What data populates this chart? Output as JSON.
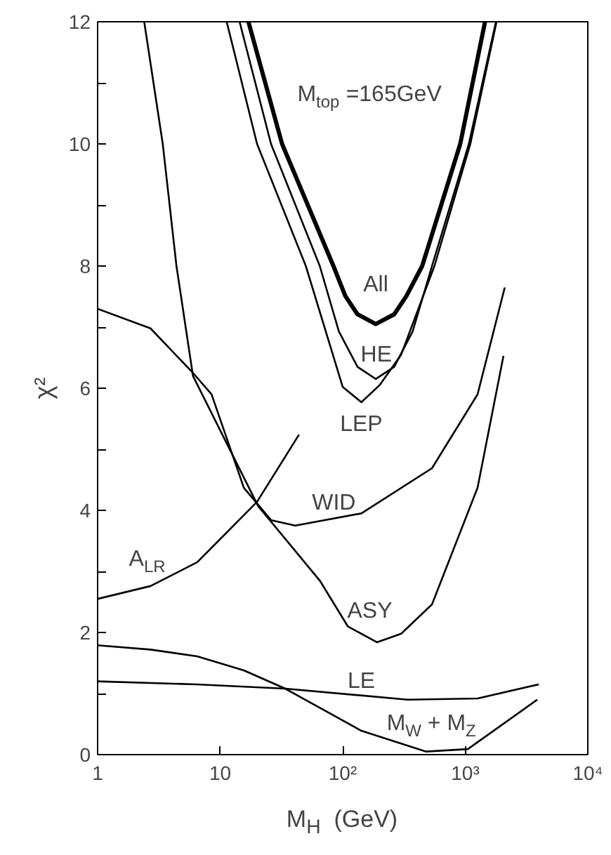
{
  "chart_data": {
    "type": "line",
    "xlabel": "M$_{H}$  (GeV)",
    "ylabel": "χ²",
    "log": "x",
    "grid": false,
    "marker": "none",
    "line_style": "solid",
    "xlim": [
      1,
      10000
    ],
    "ylim": [
      0,
      12
    ],
    "xticks": [
      1,
      10,
      {
        "value": 100,
        "label": "10²"
      },
      {
        "value": 1000,
        "label": "10³"
      },
      {
        "value": 10000,
        "label": "10⁴"
      }
    ],
    "yticks": [
      0,
      {
        "value": 1,
        "label": null
      },
      2,
      {
        "value": 3,
        "label": null
      },
      4,
      {
        "value": 5,
        "label": null
      },
      6,
      {
        "value": 7,
        "label": null
      },
      8,
      {
        "value": 9,
        "label": null
      },
      10,
      {
        "value": 11,
        "label": null
      },
      12
    ],
    "series": [
      {
        "name": "All",
        "color": "#000000",
        "x": [
          17,
          32,
          84,
          105,
          132,
          186,
          263,
          331,
          445,
          910,
          1450
        ],
        "values": [
          12,
          10,
          8,
          7.51,
          7.21,
          7.05,
          7.21,
          7.51,
          8,
          10,
          12
        ]
      },
      {
        "name": "HE",
        "color": "#000000",
        "x": [
          14.4,
          26,
          65,
          93,
          132,
          186,
          263,
          372,
          535,
          1070,
          1780
        ],
        "values": [
          12,
          10,
          8,
          6.93,
          6.35,
          6.15,
          6.35,
          6.93,
          8,
          10,
          12
        ]
      },
      {
        "name": "LEP",
        "color": "#000000",
        "x": [
          11.3,
          20,
          50,
          100,
          142,
          200,
          300,
          560,
          1100,
          1800
        ],
        "values": [
          12,
          10,
          8,
          6.02,
          5.77,
          6.05,
          6.55,
          8,
          10,
          12
        ]
      },
      {
        "name": "WID",
        "color": "#000000",
        "x": [
          1,
          2.7,
          6,
          8.5,
          15.6,
          26,
          41,
          142,
          535,
          1260,
          2100
        ],
        "values": [
          7.3,
          6.98,
          6.25,
          5.9,
          4.37,
          3.84,
          3.75,
          3.95,
          4.69,
          5.9,
          7.65
        ]
      },
      {
        "name": "ASY",
        "color": "#000000",
        "x": [
          2.4,
          3.4,
          4.4,
          6.0,
          20.4,
          65,
          110,
          190,
          300,
          535,
          1260,
          2050
        ],
        "values": [
          12,
          10,
          8,
          6.2,
          4.07,
          2.85,
          2.1,
          1.84,
          1.98,
          2.46,
          4.37,
          6.53
        ]
      },
      {
        "name": "A$_{LR}$",
        "color": "#000000",
        "x": [
          1,
          2.7,
          6.5,
          20,
          44
        ],
        "values": [
          2.55,
          2.76,
          3.15,
          4.14,
          5.24
        ]
      },
      {
        "name": "LE",
        "color": "#000000",
        "x": [
          1,
          6.5,
          34,
          340,
          1260,
          3980
        ],
        "values": [
          1.2,
          1.15,
          1.08,
          0.9,
          0.92,
          1.15
        ]
      },
      {
        "name": "M$_{W}$ + M$_{Z}$",
        "color": "#000000",
        "x": [
          1,
          2.7,
          6.5,
          15.6,
          34,
          142,
          480,
          1050,
          3870
        ],
        "values": [
          1.79,
          1.72,
          1.61,
          1.38,
          1.08,
          0.39,
          0.05,
          0.09,
          0.9
        ]
      }
    ],
    "annotations": [
      "M$_{top}$ =165GeV"
    ]
  }
}
